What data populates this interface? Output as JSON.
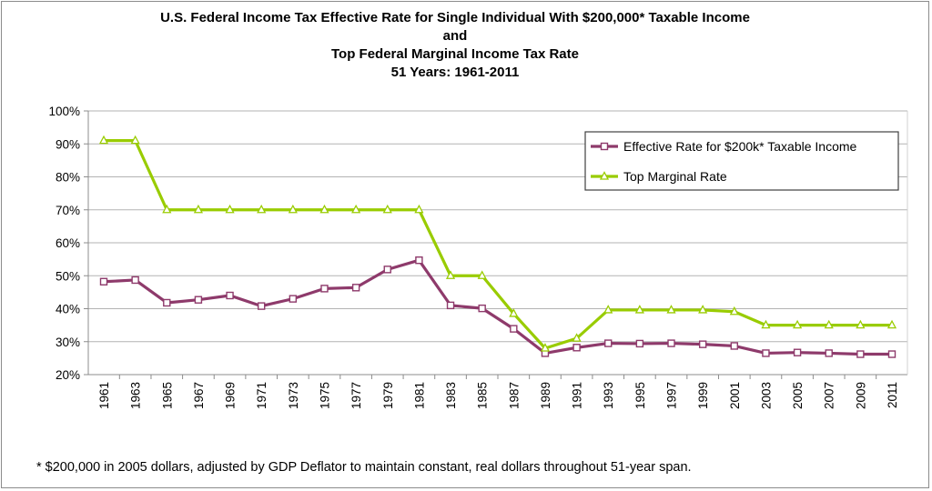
{
  "chart_data": {
    "type": "line",
    "title_lines": [
      "U.S. Federal Income Tax Effective Rate for Single Individual With $200,000* Taxable Income",
      "and",
      "Top Federal Marginal Income Tax Rate",
      "51 Years: 1961-2011"
    ],
    "footnote": "* $200,000 in 2005 dollars, adjusted by GDP Deflator to maintain constant, real dollars throughout 51-year span.",
    "x": [
      1961,
      1963,
      1965,
      1967,
      1969,
      1971,
      1973,
      1975,
      1977,
      1979,
      1981,
      1983,
      1985,
      1987,
      1989,
      1991,
      1993,
      1995,
      1997,
      1999,
      2001,
      2003,
      2005,
      2007,
      2009,
      2011
    ],
    "x_tick_labels": [
      "1961",
      "1963",
      "1965",
      "1967",
      "1969",
      "1971",
      "1973",
      "1975",
      "1977",
      "1979",
      "1981",
      "1983",
      "1985",
      "1987",
      "1989",
      "1991",
      "1993",
      "1995",
      "1997",
      "1999",
      "2001",
      "2003",
      "2005",
      "2007",
      "2009",
      "2011"
    ],
    "ylim": [
      20,
      100
    ],
    "y_ticks": [
      20,
      30,
      40,
      50,
      60,
      70,
      80,
      90,
      100
    ],
    "y_tick_labels": [
      "20%",
      "30%",
      "40%",
      "50%",
      "60%",
      "70%",
      "80%",
      "90%",
      "100%"
    ],
    "grid": true,
    "legend_position": "top-right",
    "series": [
      {
        "name": "Effective  Rate for $200k* Taxable Income",
        "color": "#8e3a6b",
        "marker": "square",
        "values": [
          48.2,
          48.7,
          41.8,
          42.7,
          44.0,
          40.8,
          43.0,
          46.1,
          46.4,
          51.9,
          54.7,
          41.0,
          40.1,
          33.9,
          26.5,
          28.2,
          29.5,
          29.4,
          29.5,
          29.2,
          28.7,
          26.5,
          26.7,
          26.5,
          26.2,
          26.2
        ]
      },
      {
        "name": "Top Marginal Rate",
        "color": "#99cc00",
        "marker": "triangle",
        "values": [
          91,
          91,
          70,
          70,
          70,
          70,
          70,
          70,
          70,
          70,
          70,
          50,
          50,
          38.5,
          28,
          31,
          39.6,
          39.6,
          39.6,
          39.6,
          39.1,
          35,
          35,
          35,
          35,
          35
        ]
      }
    ]
  }
}
